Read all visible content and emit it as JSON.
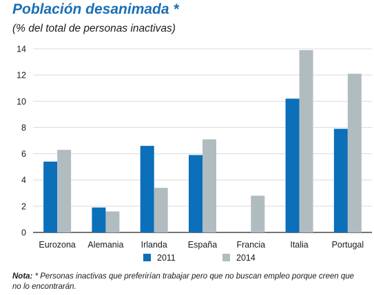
{
  "title": "Población desanimada *",
  "subtitle": "(% del total de personas inactivas)",
  "note": {
    "label": "Nota:",
    "text": " * Personas inactivas que preferirían trabajar pero que no buscan empleo porque creen que no lo encontrarán."
  },
  "chart_data": {
    "type": "bar",
    "title": "Población desanimada *",
    "subtitle": "(% del total de personas inactivas)",
    "xlabel": "",
    "ylabel": "",
    "categories": [
      "Eurozona",
      "Alemania",
      "Irlanda",
      "España",
      "Francia",
      "Italia",
      "Portugal"
    ],
    "series": [
      {
        "name": "2011",
        "color": "#0b6fba",
        "values": [
          5.4,
          1.9,
          6.6,
          5.9,
          null,
          10.2,
          7.9
        ]
      },
      {
        "name": "2014",
        "color": "#b1bcc1",
        "values": [
          6.3,
          1.6,
          3.4,
          7.1,
          2.8,
          13.9,
          12.1
        ]
      }
    ],
    "ylim": [
      0,
      14
    ],
    "yticks": [
      0,
      2,
      4,
      6,
      8,
      10,
      12,
      14
    ],
    "grid": true,
    "legend": "bottom"
  }
}
